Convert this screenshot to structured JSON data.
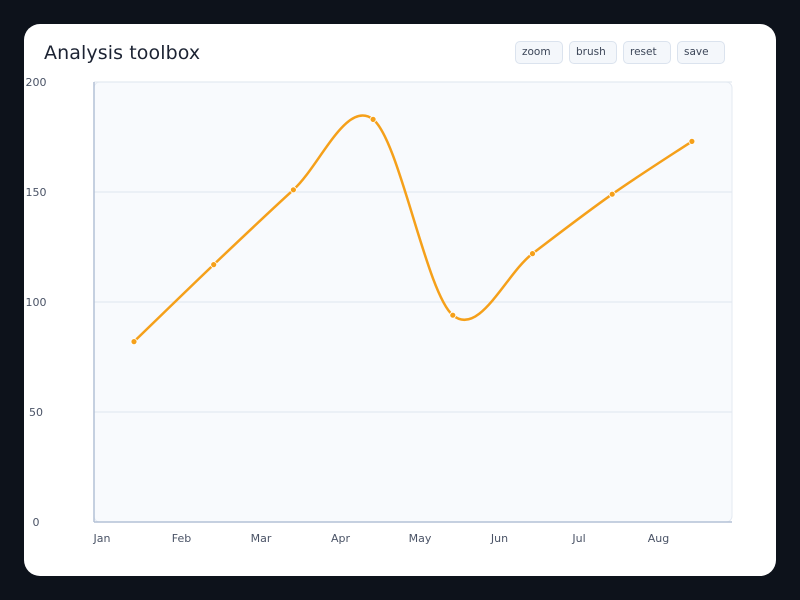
{
  "header": {
    "title": "Analysis toolbox"
  },
  "toolbar": {
    "buttons": [
      {
        "label": "zoom"
      },
      {
        "label": "brush"
      },
      {
        "label": "reset"
      },
      {
        "label": "save"
      }
    ]
  },
  "colors": {
    "series": "#f5a01a",
    "grid": "#e3e9f1",
    "axis": "#b3c1d6",
    "plot_bg": "#f8fafd"
  },
  "chart_data": {
    "type": "line",
    "title": "Analysis toolbox",
    "xlabel": "",
    "ylabel": "",
    "categories": [
      "Jan",
      "Feb",
      "Mar",
      "Apr",
      "May",
      "Jun",
      "Jul",
      "Aug"
    ],
    "series": [
      {
        "name": "",
        "values": [
          82,
          117,
          151,
          183,
          94,
          122,
          149,
          173
        ],
        "smooth": true
      }
    ],
    "ylim": [
      0,
      200
    ],
    "yticks": [
      0,
      50,
      100,
      150,
      200
    ],
    "grid": true,
    "legend": "none"
  }
}
